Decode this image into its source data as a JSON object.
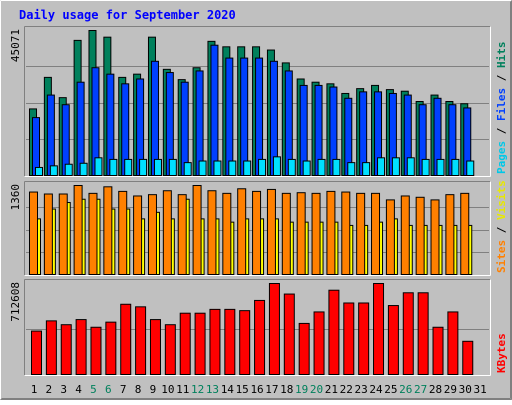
{
  "chart_data": {
    "title": "Daily usage for September 2020",
    "type": "bar",
    "colors": {
      "background": "#c0c0c0",
      "border_dark": "#808080",
      "title": "#0000ff",
      "hits": "#00805c",
      "files": "#0040ff",
      "pages": "#00e0ff",
      "visits": "#ffff00",
      "sites": "#ff8000",
      "kbytes": "#ff0000",
      "weekend_label": "#00805c",
      "weekday_label": "#000000"
    },
    "days": [
      "1",
      "2",
      "3",
      "4",
      "5",
      "6",
      "7",
      "8",
      "9",
      "10",
      "11",
      "12",
      "13",
      "14",
      "15",
      "16",
      "17",
      "18",
      "19",
      "20",
      "21",
      "22",
      "23",
      "24",
      "25",
      "26",
      "27",
      "28",
      "29",
      "30",
      "31"
    ],
    "weekend_days": [
      "5",
      "6",
      "12",
      "13",
      "19",
      "20",
      "26",
      "27"
    ],
    "panels": [
      {
        "id": "top",
        "ymax_label": "45071",
        "ymax": 45071,
        "side_label": [
          {
            "text": "Pages",
            "color": "#00c8e8"
          },
          {
            "text": " / ",
            "color": "#000000"
          },
          {
            "text": "Files",
            "color": "#0040ff"
          },
          {
            "text": " / ",
            "color": "#000000"
          },
          {
            "text": "Hits",
            "color": "#00805c"
          }
        ],
        "series": [
          {
            "name": "Hits",
            "color": "#00805c",
            "values": [
              20700,
              30500,
              24200,
              42000,
              45071,
              43000,
              30500,
              31500,
              43000,
              33000,
              29800,
              33500,
              41700,
              40000,
              40000,
              40000,
              39000,
              35000,
              30000,
              29000,
              28500,
              25500,
              27000,
              28000,
              26700,
              26200,
              23000,
              25000,
              23000,
              22300,
              null
            ]
          },
          {
            "name": "Files",
            "color": "#0040ff",
            "values": [
              18000,
              25000,
              22000,
              29000,
              33500,
              31500,
              28500,
              30000,
              35500,
              32000,
              29000,
              32500,
              40500,
              36500,
              36500,
              36500,
              35500,
              32500,
              28000,
              28000,
              27500,
              24000,
              26000,
              26000,
              25500,
              25000,
              22000,
              24000,
              22000,
              21000,
              null
            ]
          },
          {
            "name": "Pages",
            "color": "#00e0ff",
            "values": [
              2500,
              3000,
              3500,
              3800,
              5500,
              5000,
              5000,
              5000,
              5000,
              5000,
              4000,
              4500,
              4500,
              4500,
              4500,
              5000,
              5800,
              5000,
              4500,
              5000,
              5000,
              4000,
              4000,
              5500,
              5500,
              5500,
              5000,
              5000,
              5000,
              4500,
              null
            ]
          }
        ]
      },
      {
        "id": "middle",
        "ymax_label": "1360",
        "ymax": 1360,
        "side_label": [
          {
            "text": "Sites",
            "color": "#ff8000"
          },
          {
            "text": " / ",
            "color": "#000000"
          },
          {
            "text": "Visits",
            "color": "#e8e800"
          }
        ],
        "series": [
          {
            "name": "Visits",
            "color": "#ffff00",
            "values": [
              850,
              1000,
              1100,
              1150,
              1150,
              1000,
              1000,
              850,
              950,
              850,
              1150,
              850,
              850,
              800,
              850,
              850,
              850,
              800,
              800,
              800,
              800,
              750,
              750,
              800,
              850,
              750,
              750,
              750,
              750,
              750,
              null
            ]
          },
          {
            "name": "Sites",
            "color": "#ff8000",
            "values": [
              1260,
              1230,
              1230,
              1360,
              1240,
              1340,
              1270,
              1200,
              1220,
              1280,
              1220,
              1360,
              1280,
              1240,
              1310,
              1270,
              1300,
              1240,
              1250,
              1240,
              1270,
              1260,
              1240,
              1240,
              1140,
              1200,
              1180,
              1140,
              1220,
              1240,
              null
            ]
          }
        ]
      },
      {
        "id": "bottom",
        "ymax_label": "712608",
        "ymax": 712608,
        "side_label": [
          {
            "text": "KBytes",
            "color": "#ff0000"
          }
        ],
        "series": [
          {
            "name": "KBytes",
            "color": "#ff0000",
            "values": [
              340000,
              420000,
              390000,
              430000,
              370000,
              410000,
              550000,
              530000,
              430000,
              390000,
              480000,
              480000,
              510000,
              510000,
              500000,
              580000,
              712608,
              630000,
              400000,
              490000,
              660000,
              560000,
              560000,
              712608,
              540000,
              640000,
              640000,
              370000,
              490000,
              260000,
              null
            ]
          }
        ]
      }
    ]
  }
}
